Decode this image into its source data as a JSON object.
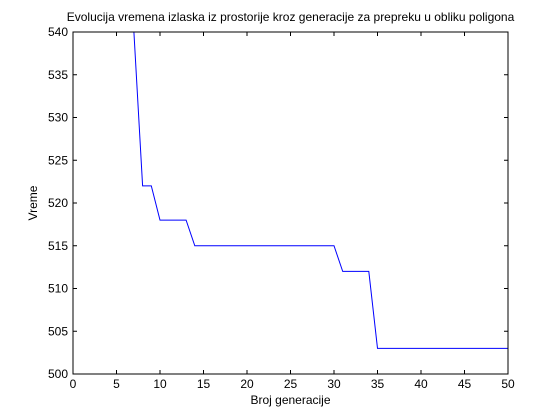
{
  "chart_data": {
    "type": "line",
    "title": "Evolucija vremena izlaska iz prostorije kroz generacije za prepreku u obliku poligona",
    "xlabel": "Broj generacije",
    "ylabel": "Vreme",
    "xlim": [
      0,
      50
    ],
    "ylim": [
      500,
      540
    ],
    "x_ticks": [
      0,
      5,
      10,
      15,
      20,
      25,
      30,
      35,
      40,
      45,
      50
    ],
    "y_ticks": [
      500,
      505,
      510,
      515,
      520,
      525,
      530,
      535,
      540
    ],
    "grid": false,
    "line_color": "#0000ff",
    "series": [
      {
        "points": [
          [
            0,
            540
          ],
          [
            7,
            540
          ],
          [
            8,
            522
          ],
          [
            9,
            522
          ],
          [
            10,
            518
          ],
          [
            11,
            518
          ],
          [
            12,
            518
          ],
          [
            13,
            518
          ],
          [
            14,
            515
          ],
          [
            15,
            515
          ],
          [
            20,
            515
          ],
          [
            25,
            515
          ],
          [
            30,
            515
          ],
          [
            31,
            512
          ],
          [
            32,
            512
          ],
          [
            33,
            512
          ],
          [
            34,
            512
          ],
          [
            35,
            503
          ],
          [
            40,
            503
          ],
          [
            45,
            503
          ],
          [
            50,
            503
          ]
        ]
      }
    ]
  }
}
